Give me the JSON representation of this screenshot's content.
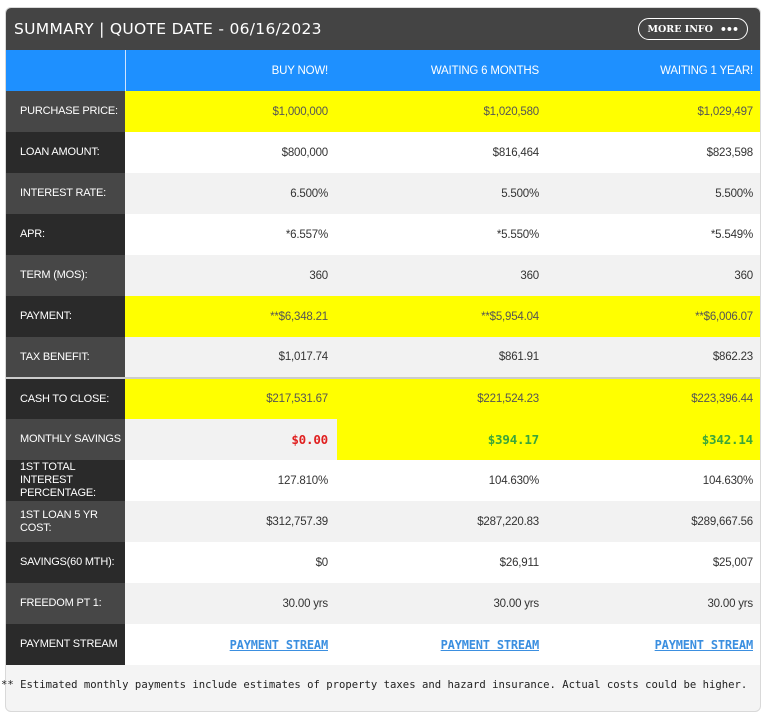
{
  "header": {
    "title": "SUMMARY | QUOTE DATE - 06/16/2023",
    "more_info_label": "MORE INFO",
    "more_info_icon": "ellipsis-icon"
  },
  "columns": [
    "",
    "BUY NOW!",
    "WAITING 6 MONTHS",
    "WAITING 1 YEAR!"
  ],
  "rows": [
    {
      "label": "PURCHASE PRICE:",
      "values": [
        "$1,000,000",
        "$1,020,580",
        "$1,029,497"
      ]
    },
    {
      "label": "LOAN AMOUNT:",
      "values": [
        "$800,000",
        "$816,464",
        "$823,598"
      ]
    },
    {
      "label": "INTEREST RATE:",
      "values": [
        "6.500%",
        "5.500%",
        "5.500%"
      ]
    },
    {
      "label": "APR:",
      "values": [
        "*6.557%",
        "*5.550%",
        "*5.549%"
      ]
    },
    {
      "label": "TERM (MOS):",
      "values": [
        "360",
        "360",
        "360"
      ]
    },
    {
      "label": "PAYMENT:",
      "values": [
        "**$6,348.21",
        "**$5,954.04",
        "**$6,006.07"
      ]
    },
    {
      "label": "TAX BENEFIT:",
      "values": [
        "$1,017.74",
        "$861.91",
        "$862.23"
      ]
    },
    {
      "label": "CASH TO CLOSE:",
      "values": [
        "$217,531.67",
        "$221,524.23",
        "$223,396.44"
      ]
    },
    {
      "label": "MONTHLY SAVINGS",
      "values": [
        "$0.00",
        "$394.17",
        "$342.14"
      ]
    },
    {
      "label": "1ST TOTAL INTEREST PERCENTAGE:",
      "values": [
        "127.810%",
        "104.630%",
        "104.630%"
      ]
    },
    {
      "label": "1ST LOAN 5 YR COST:",
      "values": [
        "$312,757.39",
        "$287,220.83",
        "$289,667.56"
      ]
    },
    {
      "label": "SAVINGS(60 MTH):",
      "values": [
        "$0",
        "$26,911",
        "$25,007"
      ]
    },
    {
      "label": "FREEDOM PT 1:",
      "values": [
        "30.00 yrs",
        "30.00 yrs",
        "30.00 yrs"
      ]
    },
    {
      "label": "PAYMENT STREAM",
      "values": [
        "PAYMENT STREAM",
        "PAYMENT STREAM",
        "PAYMENT STREAM"
      ]
    }
  ],
  "footnote": "** Estimated monthly payments include estimates of property taxes and hazard insurance. Actual costs could be higher.",
  "colors": {
    "header_bg": "#444444",
    "column_header_bg": "#1e90ff",
    "highlight": "#ffff00",
    "savings_negative": "#e02020",
    "savings_positive": "#3aa63a",
    "link": "#3b8fe0"
  }
}
